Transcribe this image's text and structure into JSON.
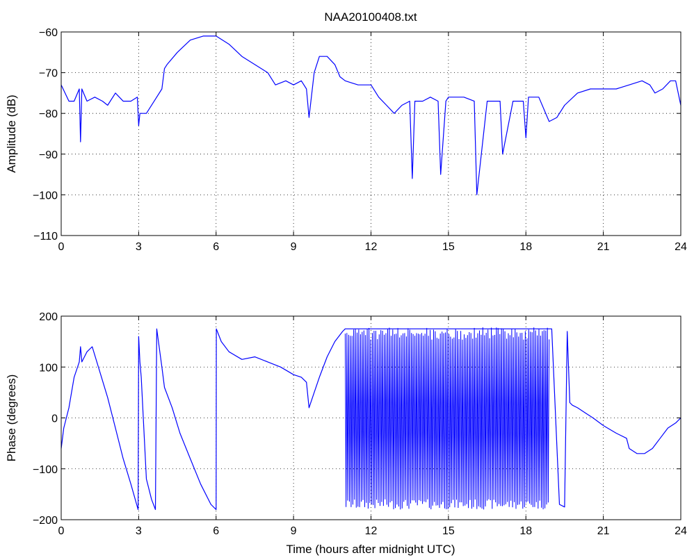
{
  "chart_data": [
    {
      "type": "line",
      "title": "NAA20100408.txt",
      "xlabel": "",
      "ylabel": "Amplitude (dB)",
      "xlim": [
        0,
        24
      ],
      "ylim": [
        -110,
        -60
      ],
      "xticks": [
        0,
        3,
        6,
        9,
        12,
        15,
        18,
        21,
        24
      ],
      "xtick_labels": [
        "0",
        "3",
        "6",
        "9",
        "12",
        "15",
        "18",
        "21",
        "24"
      ],
      "yticks": [
        -60,
        -70,
        -80,
        -90,
        -100,
        -110
      ],
      "ytick_labels": [
        "−60",
        "−70",
        "−80",
        "−90",
        "−100",
        "−110"
      ],
      "grid": true,
      "line_color": "#0000ff",
      "series": [
        {
          "x": [
            0,
            0.3,
            0.5,
            0.7,
            0.75,
            0.8,
            1.0,
            1.3,
            1.6,
            1.8,
            2.1,
            2.4,
            2.7,
            2.95,
            3.0,
            3.05,
            3.3,
            3.6,
            3.9,
            4.0,
            4.1,
            4.5,
            5.0,
            5.5,
            6.0,
            6.5,
            7.0,
            7.5,
            8.0,
            8.3,
            8.7,
            9.0,
            9.3,
            9.5,
            9.6,
            9.8,
            10.0,
            10.3,
            10.6,
            10.8,
            11.0,
            11.5,
            12.0,
            12.3,
            12.6,
            12.9,
            13.2,
            13.5,
            13.6,
            13.7,
            14.0,
            14.3,
            14.6,
            14.7,
            14.9,
            15.0,
            15.2,
            15.6,
            16.0,
            16.1,
            16.5,
            17.0,
            17.1,
            17.5,
            17.9,
            18.0,
            18.1,
            18.5,
            18.9,
            19.2,
            19.5,
            20.0,
            20.5,
            21.0,
            21.5,
            22.0,
            22.5,
            22.8,
            23.0,
            23.3,
            23.6,
            23.8,
            24.0
          ],
          "y": [
            -73,
            -77,
            -77,
            -74,
            -87,
            -74,
            -77,
            -76,
            -77,
            -78,
            -75,
            -77,
            -77,
            -76,
            -83,
            -80,
            -80,
            -77,
            -74,
            -69,
            -68,
            -65,
            -62,
            -61,
            -61,
            -63,
            -66,
            -68,
            -70,
            -73,
            -72,
            -73,
            -72,
            -74,
            -81,
            -70,
            -66,
            -66,
            -68,
            -71,
            -72,
            -73,
            -73,
            -76,
            -78,
            -80,
            -78,
            -77,
            -96,
            -77,
            -77,
            -76,
            -77,
            -95,
            -77,
            -76,
            -76,
            -76,
            -77,
            -100,
            -77,
            -77,
            -90,
            -77,
            -77,
            -86,
            -76,
            -76,
            -82,
            -81,
            -78,
            -75,
            -74,
            -74,
            -74,
            -73,
            -72,
            -73,
            -75,
            -74,
            -72,
            -72,
            -78
          ]
        }
      ]
    },
    {
      "type": "line",
      "title": "",
      "xlabel": "Time (hours after midnight UTC)",
      "ylabel": "Phase (degrees)",
      "xlim": [
        0,
        24
      ],
      "ylim": [
        -200,
        200
      ],
      "xticks": [
        0,
        3,
        6,
        9,
        12,
        15,
        18,
        21,
        24
      ],
      "xtick_labels": [
        "0",
        "3",
        "6",
        "9",
        "12",
        "15",
        "18",
        "21",
        "24"
      ],
      "yticks": [
        200,
        100,
        0,
        -100,
        -200
      ],
      "ytick_labels": [
        "200",
        "100",
        "0",
        "−100",
        "−200"
      ],
      "grid": true,
      "line_color": "#0000ff",
      "series": [
        {
          "x": [
            0,
            0.1,
            0.3,
            0.5,
            0.7,
            0.75,
            0.8,
            1.0,
            1.2,
            1.5,
            1.8,
            2.1,
            2.4,
            2.7,
            2.98,
            3.0,
            3.05,
            3.1,
            3.3,
            3.5,
            3.65,
            3.7,
            3.9,
            4.0,
            4.3,
            4.6,
            5.0,
            5.4,
            5.8,
            6.0,
            6.01,
            6.2,
            6.5,
            7.0,
            7.5,
            8.0,
            8.5,
            9.0,
            9.3,
            9.5,
            9.6,
            9.8,
            10.0,
            10.3,
            10.6,
            10.9,
            11.0,
            19.0,
            19.3,
            19.5,
            19.6,
            19.7,
            19.8,
            20.0,
            20.3,
            20.6,
            21.0,
            21.5,
            21.9,
            22.0,
            22.3,
            22.6,
            22.9,
            23.2,
            23.5,
            23.8,
            24.0
          ],
          "y": [
            -60,
            -20,
            20,
            80,
            110,
            140,
            110,
            130,
            140,
            90,
            40,
            -20,
            -80,
            -130,
            -180,
            160,
            110,
            80,
            -120,
            -160,
            -180,
            175,
            100,
            60,
            20,
            -30,
            -80,
            -130,
            -170,
            -180,
            175,
            150,
            130,
            115,
            120,
            110,
            100,
            85,
            80,
            70,
            20,
            50,
            80,
            120,
            150,
            170,
            175,
            175,
            -170,
            -175,
            170,
            30,
            25,
            20,
            10,
            0,
            -15,
            -30,
            -40,
            -60,
            -70,
            -70,
            -60,
            -40,
            -20,
            -10,
            0
          ]
        }
      ],
      "dense_band": {
        "x_start": 11.0,
        "x_end": 18.9,
        "y_min": -180,
        "y_max": 178
      }
    }
  ]
}
